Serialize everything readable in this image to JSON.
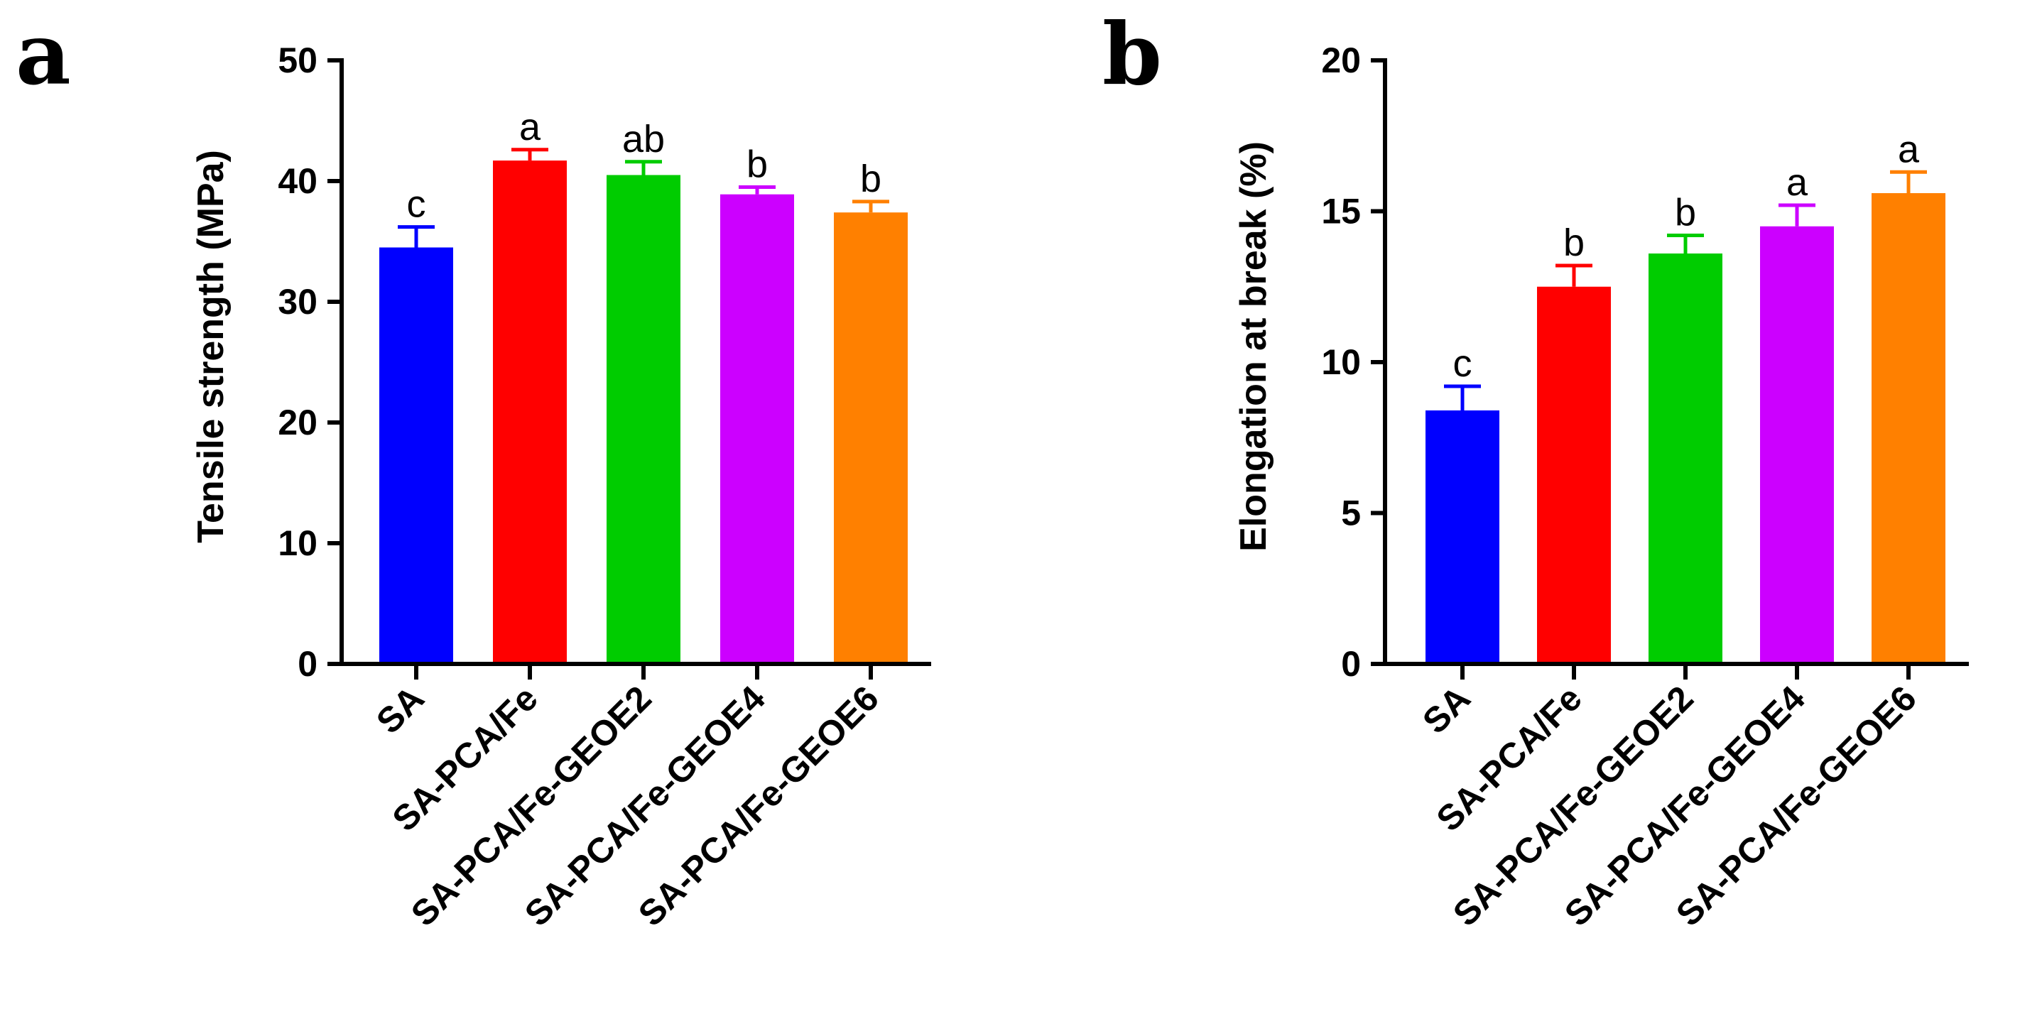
{
  "chart_data": [
    {
      "type": "bar",
      "panel": "a",
      "title": "",
      "xlabel": "",
      "ylabel": "Tensile strength (MPa)",
      "ylim": [
        0,
        50
      ],
      "yticks": [
        0,
        10,
        20,
        30,
        40,
        50
      ],
      "categories": [
        "SA",
        "SA-PCA/Fe",
        "SA-PCA/Fe-GEOE2",
        "SA-PCA/Fe-GEOE4",
        "SA-PCA/Fe-GEOE6"
      ],
      "values": [
        34.5,
        41.7,
        40.5,
        38.9,
        37.4
      ],
      "errors": [
        1.7,
        0.9,
        1.1,
        0.6,
        0.9
      ],
      "significance": [
        "c",
        "a",
        "ab",
        "b",
        "b"
      ],
      "colors": [
        "#0000ff",
        "#ff0000",
        "#00cc00",
        "#cc00ff",
        "#ff8000"
      ],
      "grid": false
    },
    {
      "type": "bar",
      "panel": "b",
      "title": "",
      "xlabel": "",
      "ylabel": "Elongation at break (%)",
      "ylim": [
        0,
        20
      ],
      "yticks": [
        0,
        5,
        10,
        15,
        20
      ],
      "categories": [
        "SA",
        "SA-PCA/Fe",
        "SA-PCA/Fe-GEOE2",
        "SA-PCA/Fe-GEOE4",
        "SA-PCA/Fe-GEOE6"
      ],
      "values": [
        8.4,
        12.5,
        13.6,
        14.5,
        15.6
      ],
      "errors": [
        0.8,
        0.7,
        0.6,
        0.7,
        0.7
      ],
      "significance": [
        "c",
        "b",
        "b",
        "a",
        "a"
      ],
      "colors": [
        "#0000ff",
        "#ff0000",
        "#00cc00",
        "#cc00ff",
        "#ff8000"
      ],
      "grid": false
    }
  ]
}
